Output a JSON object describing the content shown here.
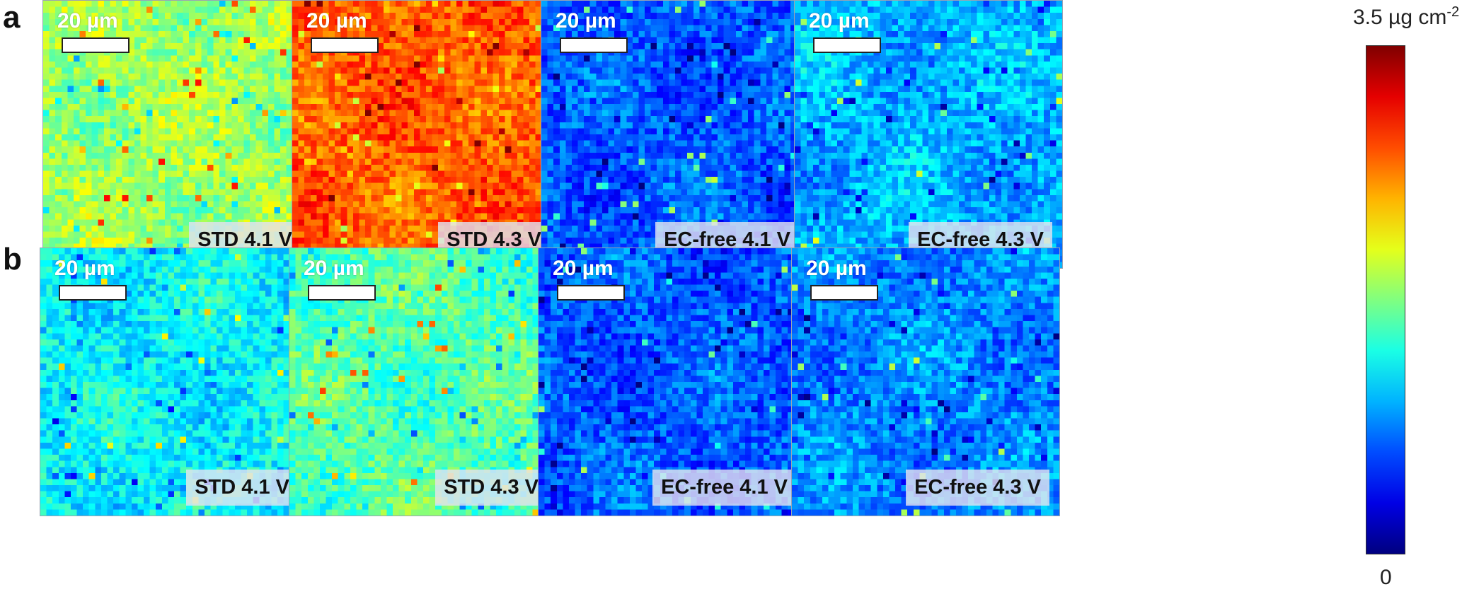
{
  "chart_data": {
    "type": "heatmap",
    "colorbar": {
      "max_label": "3.5 µg cm",
      "max_exponent": "-2",
      "min_label": "0",
      "range": [
        0,
        3.5
      ],
      "colormap": "jet"
    },
    "scale_bar_label": "20 µm",
    "rows": [
      {
        "label": "a",
        "panels": [
          {
            "label": "STD 4.1 V",
            "mean_level": 1.85
          },
          {
            "label": "STD 4.3 V",
            "mean_level": 2.75
          },
          {
            "label": "EC-free 4.1 V",
            "mean_level": 0.75
          },
          {
            "label": "EC-free 4.3 V",
            "mean_level": 1.05
          }
        ]
      },
      {
        "label": "b",
        "panels": [
          {
            "label": "STD 4.1 V",
            "mean_level": 1.3
          },
          {
            "label": "STD 4.3 V",
            "mean_level": 1.6
          },
          {
            "label": "EC-free 4.1 V",
            "mean_level": 0.75
          },
          {
            "label": "EC-free 4.3 V",
            "mean_level": 0.9
          }
        ]
      }
    ]
  }
}
